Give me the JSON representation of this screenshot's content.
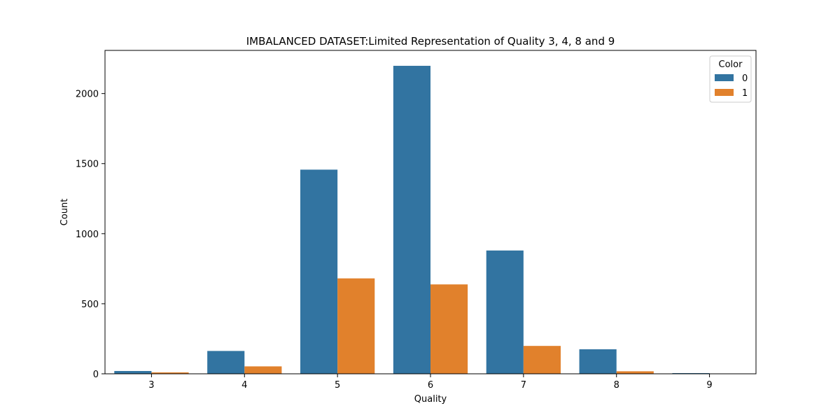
{
  "chart_data": {
    "type": "bar",
    "title": "IMBALANCED DATASET:Limited Representation of Quality 3, 4, 8 and 9",
    "xlabel": "Quality",
    "ylabel": "Count",
    "categories": [
      "3",
      "4",
      "5",
      "6",
      "7",
      "8",
      "9"
    ],
    "series": [
      {
        "name": "0",
        "values": [
          20,
          163,
          1457,
          2198,
          880,
          175,
          5
        ],
        "color": "#3274a1"
      },
      {
        "name": "1",
        "values": [
          10,
          53,
          681,
          638,
          199,
          18,
          0
        ],
        "color": "#e1812c"
      }
    ],
    "ylim": [
      0,
      2308
    ],
    "yticks": [
      0,
      500,
      1000,
      1500,
      2000
    ],
    "grid": false,
    "legend": {
      "title": "Color",
      "placement": "top-right"
    }
  }
}
